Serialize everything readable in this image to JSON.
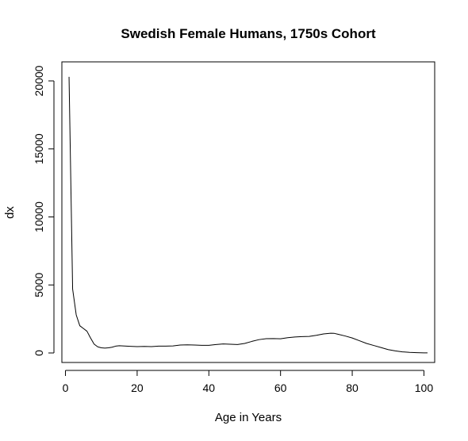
{
  "chart_data": {
    "type": "line",
    "title": "Swedish Female Humans, 1750s Cohort",
    "xlabel": "Age in Years",
    "ylabel": "dx",
    "xlim": [
      -1,
      103
    ],
    "ylim": [
      -700,
      21400
    ],
    "xticks": [
      0,
      20,
      40,
      60,
      80,
      100
    ],
    "yticks": [
      0,
      5000,
      10000,
      15000,
      20000
    ],
    "grid": false,
    "series": [
      {
        "x": [
          1,
          2,
          3,
          4,
          5,
          6,
          7,
          8,
          9,
          10,
          11,
          12,
          13,
          14,
          15,
          16,
          18,
          20,
          22,
          24,
          26,
          28,
          30,
          32,
          34,
          36,
          38,
          40,
          42,
          44,
          46,
          48,
          50,
          52,
          54,
          56,
          58,
          60,
          62,
          64,
          66,
          68,
          70,
          72,
          74,
          75,
          76,
          78,
          80,
          82,
          84,
          86,
          88,
          90,
          92,
          94,
          96,
          98,
          100,
          101
        ],
        "y": [
          20300,
          4700,
          2800,
          2000,
          1800,
          1600,
          1100,
          650,
          450,
          380,
          360,
          380,
          420,
          500,
          530,
          520,
          490,
          470,
          480,
          470,
          500,
          500,
          520,
          580,
          600,
          580,
          560,
          560,
          620,
          660,
          640,
          620,
          700,
          850,
          980,
          1050,
          1060,
          1040,
          1120,
          1170,
          1200,
          1220,
          1300,
          1400,
          1450,
          1440,
          1380,
          1250,
          1100,
          900,
          700,
          550,
          400,
          250,
          150,
          80,
          40,
          20,
          10,
          5
        ]
      }
    ]
  }
}
